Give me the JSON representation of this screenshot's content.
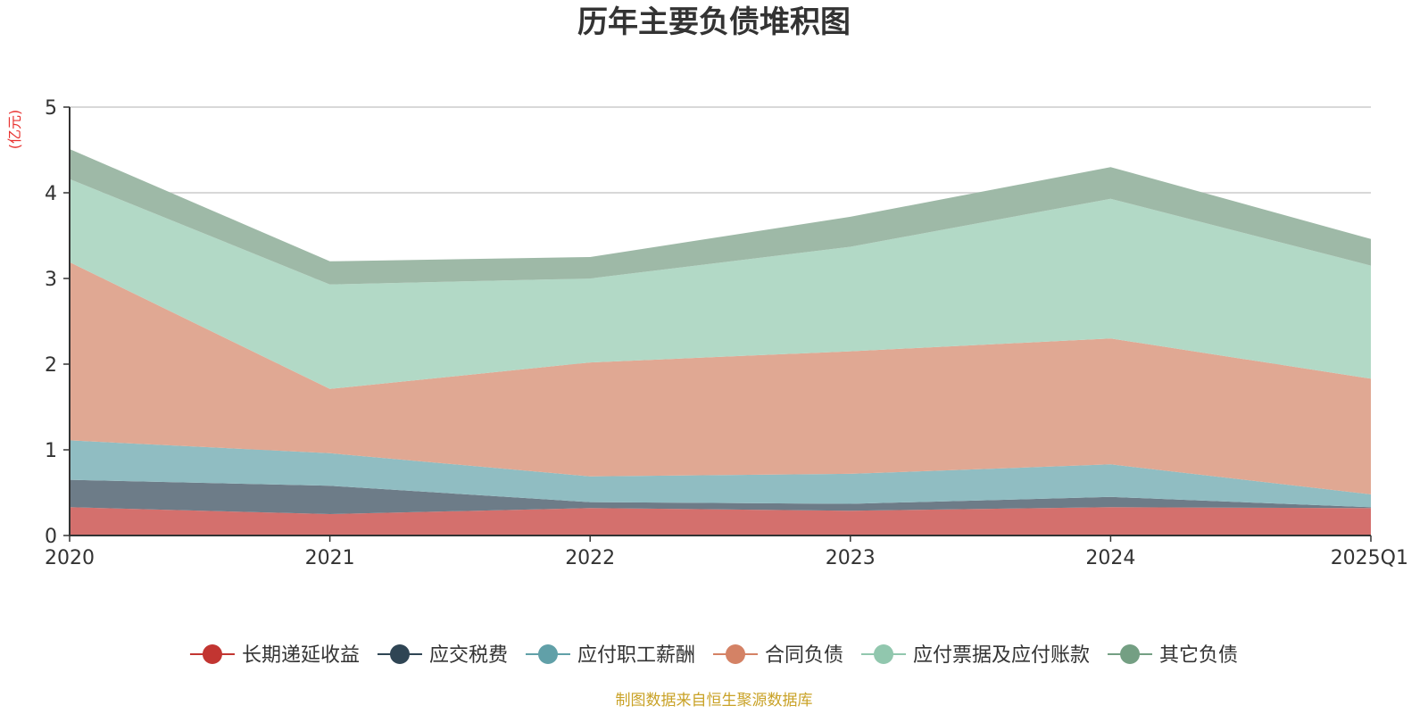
{
  "chart_data": {
    "type": "area",
    "stacked": true,
    "title": "历年主要负债堆积图",
    "unit_label": "(亿元)",
    "source": "制图数据来自恒生聚源数据库",
    "x": [
      "2020",
      "2021",
      "2022",
      "2023",
      "2024",
      "2025Q1"
    ],
    "ylim": [
      0,
      5
    ],
    "yticks": [
      "0",
      "1",
      "2",
      "3",
      "4",
      "5"
    ],
    "grid": true,
    "legend_position": "bottom",
    "series": [
      {
        "name": "长期递延收益",
        "color": "#c23531",
        "fill": "#d4706d",
        "values": [
          0.33,
          0.25,
          0.32,
          0.29,
          0.33,
          0.32
        ]
      },
      {
        "name": "应交税费",
        "color": "#2f4554",
        "fill": "#6d7c88",
        "values": [
          0.32,
          0.33,
          0.07,
          0.08,
          0.12,
          0.01
        ]
      },
      {
        "name": "应付职工薪酬",
        "color": "#61a0a8",
        "fill": "#90bdc2",
        "values": [
          0.46,
          0.38,
          0.3,
          0.35,
          0.38,
          0.15
        ]
      },
      {
        "name": "合同负债",
        "color": "#d48265",
        "fill": "#e0a893",
        "values": [
          2.08,
          0.75,
          1.33,
          1.43,
          1.47,
          1.35
        ]
      },
      {
        "name": "应付票据及应付账款",
        "color": "#91c7ae",
        "fill": "#b2d9c6",
        "values": [
          0.97,
          1.22,
          0.98,
          1.22,
          1.63,
          1.32
        ]
      },
      {
        "name": "其它负债",
        "color": "#749f83",
        "fill": "#9eb9a7",
        "values": [
          0.35,
          0.27,
          0.25,
          0.35,
          0.37,
          0.31
        ]
      }
    ]
  }
}
